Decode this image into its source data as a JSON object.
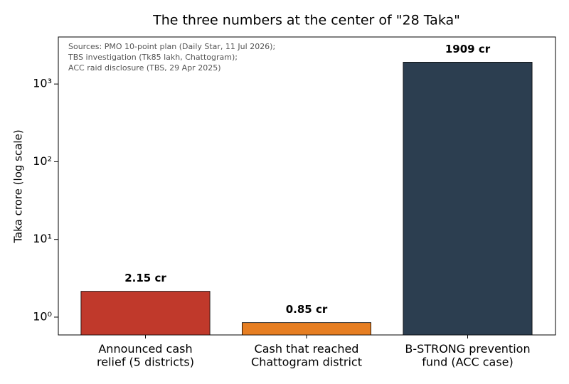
{
  "chart_data": {
    "type": "bar",
    "title": "The three numbers at the center of \"28 Taka\"",
    "y_label": "Taka crore (log scale)",
    "annotation": [
      "Sources: PMO 10-point plan (Daily Star, 11 Jul 2026);",
      "TBS investigation (Tk85 lakh, Chattogram);",
      "ACC raid disclosure (TBS, 29 Apr 2025)"
    ],
    "categories": [
      "Announced cash\nrelief (5 districts)",
      "Cash that reached\nChattogram district",
      "B-STRONG prevention\nfund (ACC case)"
    ],
    "values": [
      2.15,
      0.85,
      1909
    ],
    "value_labels": [
      "2.15 cr",
      "0.85 cr",
      "1909 cr"
    ],
    "colors": [
      "#c0392b",
      "#e67e22",
      "#2c3e50"
    ],
    "log_scale": true,
    "ylim": [
      0.59,
      4030
    ],
    "yticks": [
      {
        "value": 1,
        "label": "10⁰"
      },
      {
        "value": 10,
        "label": "10¹"
      },
      {
        "value": 100,
        "label": "10²"
      },
      {
        "value": 1000,
        "label": "10³"
      }
    ]
  }
}
